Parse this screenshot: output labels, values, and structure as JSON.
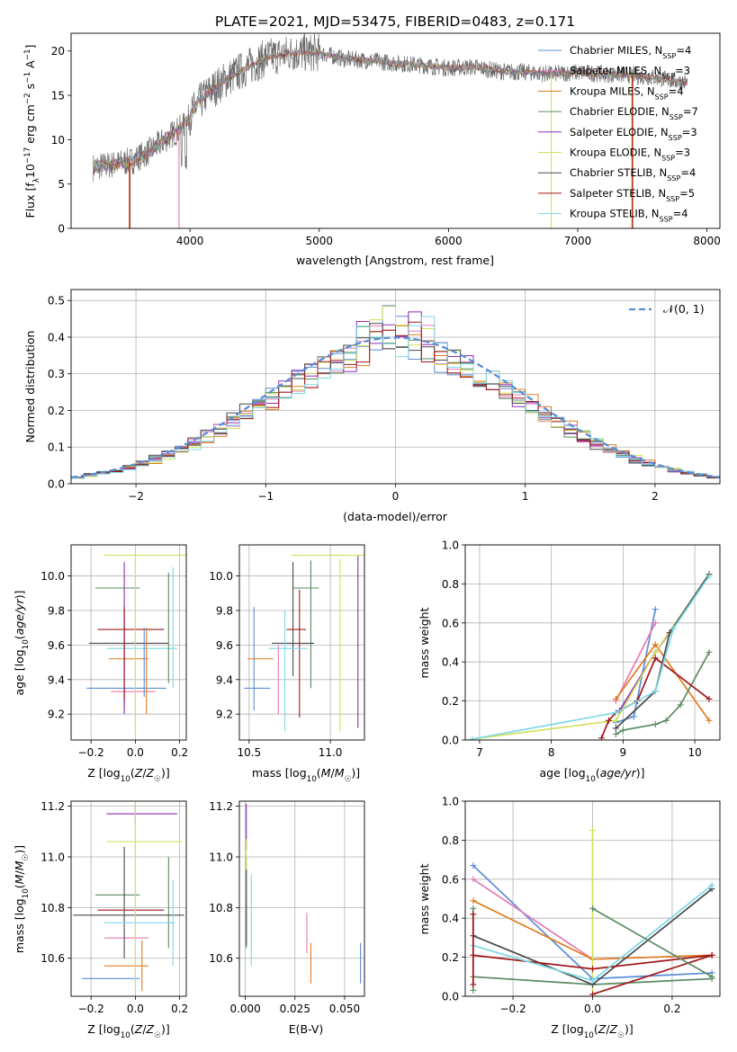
{
  "figure_title": "PLATE=2021, MJD=53475, FIBERID=0483, z=0.171",
  "colors": {
    "spectrum_data": "#6b6b6b",
    "gaussian": "#5b8ed6",
    "grid": "#b0b0b0",
    "models": [
      "#5b8ed6",
      "#e879b5",
      "#e07b1f",
      "#5b8a60",
      "#8e2bb5",
      "#d4e05a",
      "#4a4a4a",
      "#a01818",
      "#7dd8e6"
    ]
  },
  "legend": {
    "spectrum": [
      {
        "model": "Chabrier MILES",
        "n": "4"
      },
      {
        "model": "Salpeter MILES",
        "n": "3"
      },
      {
        "model": "Kroupa MILES",
        "n": "4"
      },
      {
        "model": "Chabrier ELODIE",
        "n": "7"
      },
      {
        "model": "Salpeter ELODIE",
        "n": "3"
      },
      {
        "model": "Kroupa ELODIE",
        "n": "3"
      },
      {
        "model": "Chabrier STELIB",
        "n": "4"
      },
      {
        "model": "Salpeter STELIB",
        "n": "5"
      },
      {
        "model": "Kroupa STELIB",
        "n": "4"
      }
    ],
    "residual": "𝒩(0, 1)"
  },
  "chart_data": [
    {
      "id": "spectrum",
      "type": "line",
      "xlabel": "wavelength [Angstrom, rest frame]",
      "ylabel": "Flux [f_λ 10^-17 erg cm^-2 s^-1 A^-1]",
      "xlim": [
        3080,
        8100
      ],
      "ylim": [
        0,
        22
      ],
      "grid": false,
      "xticks": [
        4000,
        5000,
        6000,
        7000,
        8000
      ],
      "yticks": [
        0,
        5,
        10,
        15,
        20
      ],
      "continuum": {
        "x": [
          3250,
          3400,
          3550,
          3700,
          3850,
          3950,
          4050,
          4150,
          4300,
          4450,
          4600,
          4800,
          5000,
          5200,
          5400,
          5600,
          5800,
          6000,
          6200,
          6400,
          6600,
          6800,
          7000,
          7200,
          7400,
          7600,
          7850
        ],
        "y": [
          6.9,
          7.2,
          7.6,
          8.8,
          10.5,
          11.5,
          13.8,
          15.4,
          17.0,
          18.2,
          19.3,
          19.8,
          19.8,
          19.1,
          18.9,
          18.6,
          18.4,
          18.1,
          18.2,
          17.7,
          17.6,
          17.4,
          17.6,
          17.4,
          17.3,
          17.0,
          16.4
        ]
      },
      "model_dropouts": [
        {
          "model": 2,
          "x": 3530
        },
        {
          "model": 7,
          "x": 3535
        },
        {
          "model": 1,
          "x": 3915
        },
        {
          "model": 5,
          "x": 6795
        },
        {
          "model": 2,
          "x": 7420
        },
        {
          "model": 7,
          "x": 7425
        }
      ]
    },
    {
      "id": "residuals",
      "type": "histogram",
      "xlabel": "(data-model)/error",
      "ylabel": "Normed distribution",
      "xlim": [
        -2.5,
        2.5
      ],
      "ylim": [
        0,
        0.53
      ],
      "grid": true,
      "xticks": [
        -2,
        -1,
        0,
        1,
        2
      ],
      "yticks": [
        0,
        0.1,
        0.2,
        0.3,
        0.4,
        0.5
      ],
      "bin_width": 0.1,
      "gaussian": {
        "mu": 0,
        "sigma": 1
      }
    },
    {
      "id": "age_vs_Z",
      "type": "errorbar",
      "xlabel": "Z [log10(Z/Z☉)]",
      "ylabel": "age [log10(age/yr)]",
      "xlim": [
        -0.29,
        0.23
      ],
      "ylim": [
        9.05,
        10.18
      ],
      "grid": true,
      "xticks": [
        -0.2,
        0.0,
        0.2
      ],
      "yticks": [
        9.2,
        9.4,
        9.6,
        9.8,
        10.0
      ],
      "points": [
        {
          "m": 0,
          "x": -0.04,
          "xe": 0.18,
          "y": 9.35,
          "ye": 0
        },
        {
          "m": 1,
          "x": -0.01,
          "xe": 0.1,
          "y": 9.33,
          "ye": 0
        },
        {
          "m": 2,
          "x": -0.03,
          "xe": 0.09,
          "y": 9.52,
          "ye": 0
        },
        {
          "m": 3,
          "x": -0.08,
          "xe": 0.1,
          "y": 9.93,
          "ye": 0
        },
        {
          "m": 4,
          "x": -0.05,
          "xe": 0,
          "y": 9.5,
          "ye": 0.3
        },
        {
          "m": 5,
          "x": 0.05,
          "xe": 0.19,
          "y": 10.12,
          "ye": 0
        },
        {
          "m": 6,
          "x": -0.03,
          "xe": 0.18,
          "y": 9.61,
          "ye": 0
        },
        {
          "m": 7,
          "x": -0.02,
          "xe": 0.15,
          "y": 9.69,
          "ye": 0
        },
        {
          "m": 8,
          "x": 0.03,
          "xe": 0.16,
          "y": 9.58,
          "ye": 0
        },
        {
          "m": 0,
          "x": 0.04,
          "xe": 0,
          "y": 9.5,
          "ye": 0.2
        },
        {
          "m": 2,
          "x": 0.05,
          "xe": 0,
          "y": 9.45,
          "ye": 0.25
        },
        {
          "m": 3,
          "x": 0.15,
          "xe": 0,
          "y": 9.7,
          "ye": 0.32
        },
        {
          "m": 4,
          "x": -0.05,
          "xe": 0,
          "y": 9.66,
          "ye": 0.42
        },
        {
          "m": 5,
          "x": 0.0,
          "xe": 0,
          "y": 9.6,
          "ye": 0.52
        },
        {
          "m": 8,
          "x": 0.17,
          "xe": 0,
          "y": 9.7,
          "ye": 0.35
        },
        {
          "m": 7,
          "x": -0.05,
          "xe": 0,
          "y": 9.55,
          "ye": 0.27
        }
      ]
    },
    {
      "id": "age_vs_mass",
      "type": "errorbar",
      "xlabel": "mass [log10(M/M☉)]",
      "ylabel": "",
      "xlim": [
        10.44,
        11.21
      ],
      "ylim": [
        9.05,
        10.18
      ],
      "grid": true,
      "xticks": [
        10.5,
        11.0
      ],
      "yticks": [
        9.2,
        9.4,
        9.6,
        9.8,
        10.0
      ],
      "points": [
        {
          "m": 0,
          "x": 10.53,
          "xe": 0,
          "y": 9.52,
          "ye": 0.3
        },
        {
          "m": 0,
          "x": 10.55,
          "xe": 0.08,
          "y": 9.35,
          "ye": 0
        },
        {
          "m": 1,
          "x": 10.68,
          "xe": 0,
          "y": 9.4,
          "ye": 0.2
        },
        {
          "m": 2,
          "x": 10.57,
          "xe": 0.08,
          "y": 9.52,
          "ye": 0
        },
        {
          "m": 3,
          "x": 10.85,
          "xe": 0.08,
          "y": 9.93,
          "ye": 0
        },
        {
          "m": 3,
          "x": 10.88,
          "xe": 0,
          "y": 9.72,
          "ye": 0.37
        },
        {
          "m": 4,
          "x": 11.17,
          "xe": 0,
          "y": 9.62,
          "ye": 0.5
        },
        {
          "m": 5,
          "x": 11.06,
          "xe": 0.3,
          "y": 10.12,
          "ye": 0
        },
        {
          "m": 5,
          "x": 11.06,
          "xe": 0,
          "y": 9.6,
          "ye": 0.5
        },
        {
          "m": 6,
          "x": 10.77,
          "xe": 0.13,
          "y": 9.61,
          "ye": 0
        },
        {
          "m": 6,
          "x": 10.77,
          "xe": 0,
          "y": 9.75,
          "ye": 0.33
        },
        {
          "m": 7,
          "x": 10.79,
          "xe": 0.06,
          "y": 9.69,
          "ye": 0
        },
        {
          "m": 7,
          "x": 10.81,
          "xe": 0,
          "y": 9.55,
          "ye": 0.37
        },
        {
          "m": 8,
          "x": 10.74,
          "xe": 0.12,
          "y": 9.58,
          "ye": 0
        },
        {
          "m": 8,
          "x": 10.72,
          "xe": 0,
          "y": 9.45,
          "ye": 0.35
        }
      ]
    },
    {
      "id": "weight_vs_age",
      "type": "line",
      "xlabel": "age [log10(age/yr)]",
      "ylabel": "mass weight",
      "xlim": [
        6.8,
        10.35
      ],
      "ylim": [
        0,
        1
      ],
      "grid": true,
      "xticks": [
        7,
        8,
        9,
        10
      ],
      "yticks": [
        0.0,
        0.2,
        0.4,
        0.6,
        0.8,
        1.0
      ],
      "series": [
        {
          "m": 0,
          "x": [
            8.9,
            9.15,
            9.45
          ],
          "y": [
            0.09,
            0.12,
            0.67
          ]
        },
        {
          "m": 1,
          "x": [
            8.9,
            9.45
          ],
          "y": [
            0.2,
            0.6
          ]
        },
        {
          "m": 2,
          "x": [
            8.9,
            9.45,
            10.2
          ],
          "y": [
            0.21,
            0.49,
            0.1
          ]
        },
        {
          "m": 3,
          "x": [
            8.9,
            9.0,
            9.45,
            9.6,
            9.8,
            10.2
          ],
          "y": [
            0.03,
            0.05,
            0.08,
            0.1,
            0.18,
            0.45
          ]
        },
        {
          "m": 4,
          "x": [
            8.95,
            9.45,
            9.65
          ],
          "y": [
            0.15,
            0.45,
            0.55
          ]
        },
        {
          "m": 5,
          "x": [
            6.9,
            8.9,
            9.45,
            10.2
          ],
          "y": [
            0.005,
            0.1,
            0.45,
            0.85
          ]
        },
        {
          "m": 6,
          "x": [
            8.9,
            9.45,
            9.65,
            10.2
          ],
          "y": [
            0.06,
            0.25,
            0.55,
            0.85
          ]
        },
        {
          "m": 7,
          "x": [
            8.7,
            8.8,
            8.9,
            9.2,
            9.45,
            10.2
          ],
          "y": [
            0.01,
            0.1,
            0.14,
            0.2,
            0.42,
            0.21
          ]
        },
        {
          "m": 8,
          "x": [
            6.9,
            8.9,
            9.45,
            9.7,
            10.2
          ],
          "y": [
            0.005,
            0.14,
            0.25,
            0.57,
            0.84
          ]
        }
      ]
    },
    {
      "id": "mass_vs_Z",
      "type": "errorbar",
      "xlabel": "Z [log10(Z/Z☉)]",
      "ylabel": "mass [log10(M/M☉)]",
      "xlim": [
        -0.29,
        0.23
      ],
      "ylim": [
        10.45,
        11.22
      ],
      "grid": true,
      "xticks": [
        -0.2,
        0.0,
        0.2
      ],
      "yticks": [
        10.6,
        10.8,
        11.0,
        11.2
      ],
      "points": [
        {
          "m": 0,
          "x": -0.11,
          "xe": 0.13,
          "y": 10.52,
          "ye": 0
        },
        {
          "m": 1,
          "x": -0.04,
          "xe": 0.1,
          "y": 10.68,
          "ye": 0
        },
        {
          "m": 2,
          "x": -0.04,
          "xe": 0.1,
          "y": 10.57,
          "ye": 0
        },
        {
          "m": 2,
          "x": 0.03,
          "xe": 0,
          "y": 10.57,
          "ye": 0.1
        },
        {
          "m": 3,
          "x": -0.08,
          "xe": 0.1,
          "y": 10.85,
          "ye": 0
        },
        {
          "m": 3,
          "x": 0.15,
          "xe": 0,
          "y": 10.82,
          "ye": 0.18
        },
        {
          "m": 4,
          "x": 0.03,
          "xe": 0.16,
          "y": 11.17,
          "ye": 0
        },
        {
          "m": 4,
          "x": 0.0,
          "xe": 0,
          "y": 11.17,
          "ye": 0.04
        },
        {
          "m": 5,
          "x": 0.04,
          "xe": 0.17,
          "y": 11.06,
          "ye": 0
        },
        {
          "m": 6,
          "x": -0.03,
          "xe": 0.25,
          "y": 10.77,
          "ye": 0
        },
        {
          "m": 6,
          "x": -0.05,
          "xe": 0,
          "y": 10.82,
          "ye": 0.22
        },
        {
          "m": 7,
          "x": -0.02,
          "xe": 0.15,
          "y": 10.79,
          "ye": 0
        },
        {
          "m": 8,
          "x": 0.02,
          "xe": 0.16,
          "y": 10.74,
          "ye": 0
        },
        {
          "m": 8,
          "x": 0.17,
          "xe": 0,
          "y": 10.74,
          "ye": 0.17
        },
        {
          "m": 5,
          "x": 0.0,
          "xe": 0,
          "y": 10.85,
          "ye": 0.38
        }
      ]
    },
    {
      "id": "mass_vs_EBV",
      "type": "errorbar",
      "xlabel": "E(B-V)",
      "ylabel": "",
      "xlim": [
        -0.003,
        0.06
      ],
      "ylim": [
        10.45,
        11.22
      ],
      "grid": true,
      "xticks": [
        0.0,
        0.025,
        0.05
      ],
      "xticklabels": [
        "0.000",
        "0.025",
        "0.050"
      ],
      "yticks": [
        10.6,
        10.8,
        11.0,
        11.2
      ],
      "points": [
        {
          "m": 0,
          "x": 0.058,
          "xe": 0,
          "y": 10.58,
          "ye": 0.08
        },
        {
          "m": 1,
          "x": 0.031,
          "xe": 0,
          "y": 10.7,
          "ye": 0.08
        },
        {
          "m": 2,
          "x": 0.033,
          "xe": 0,
          "y": 10.58,
          "ye": 0.08
        },
        {
          "m": 3,
          "x": 0.0005,
          "xe": 0,
          "y": 10.82,
          "ye": 0.18
        },
        {
          "m": 4,
          "x": 0.0005,
          "xe": 0,
          "y": 11.12,
          "ye": 0.09
        },
        {
          "m": 5,
          "x": 0.0005,
          "xe": 0,
          "y": 10.95,
          "ye": 0.12
        },
        {
          "m": 6,
          "x": 0.0005,
          "xe": 0,
          "y": 10.8,
          "ye": 0.15
        },
        {
          "m": 8,
          "x": 0.003,
          "xe": 0,
          "y": 10.75,
          "ye": 0.18
        }
      ]
    },
    {
      "id": "weight_vs_Z",
      "type": "line",
      "xlabel": "Z [log10(Z/Z☉)]",
      "ylabel": "mass weight",
      "xlim": [
        -0.32,
        0.32
      ],
      "ylim": [
        0,
        1
      ],
      "grid": true,
      "xticks": [
        -0.2,
        0.0,
        0.2
      ],
      "yticks": [
        0.0,
        0.2,
        0.4,
        0.6,
        0.8,
        1.0
      ],
      "series": [
        {
          "m": 0,
          "x": [
            -0.3,
            0.0,
            0.3
          ],
          "y": [
            0.67,
            0.09,
            0.12
          ]
        },
        {
          "m": 1,
          "x": [
            -0.3,
            0.0,
            0.3
          ],
          "y": [
            0.6,
            0.19,
            0.21
          ]
        },
        {
          "m": 2,
          "x": [
            -0.3,
            0.0,
            0.3
          ],
          "y": [
            0.49,
            0.19,
            0.21
          ]
        },
        {
          "m": 3,
          "x": [
            -0.3,
            0.0,
            0.3
          ],
          "y": [
            0.1,
            0.06,
            0.09
          ]
        },
        {
          "m": 5,
          "x": [
            0.0,
            0.0
          ],
          "y": [
            0.0,
            0.85
          ]
        },
        {
          "m": 3,
          "x": [
            -0.3,
            -0.3
          ],
          "y": [
            0.03,
            0.45
          ]
        },
        {
          "m": 6,
          "x": [
            -0.3,
            0.0,
            0.3
          ],
          "y": [
            0.31,
            0.06,
            0.55
          ]
        },
        {
          "m": 7,
          "x": [
            -0.3,
            0.0,
            0.3
          ],
          "y": [
            0.21,
            0.14,
            0.21
          ]
        },
        {
          "m": 8,
          "x": [
            -0.3,
            0.0,
            0.3
          ],
          "y": [
            0.26,
            0.08,
            0.57
          ]
        },
        {
          "m": 7,
          "x": [
            0.0,
            0.3
          ],
          "y": [
            0.01,
            0.21
          ]
        },
        {
          "m": 3,
          "x": [
            0.0,
            0.3
          ],
          "y": [
            0.45,
            0.1
          ]
        },
        {
          "m": 7,
          "x": [
            -0.3,
            -0.3
          ],
          "y": [
            0.06,
            0.42
          ]
        }
      ]
    }
  ]
}
